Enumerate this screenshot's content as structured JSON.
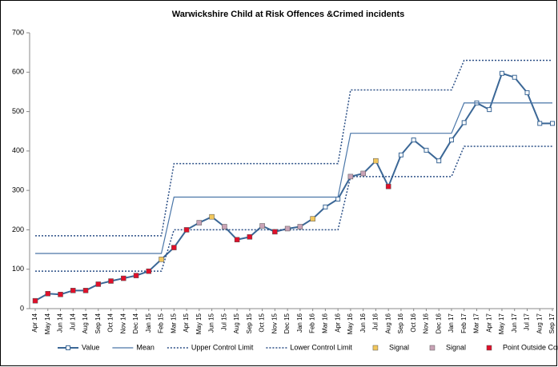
{
  "chart_data": {
    "type": "line",
    "title": "Warwickshire Child at Risk Offences &Crimed incidents",
    "categories": [
      "Apr 14",
      "May 14",
      "Jun 14",
      "Jul 14",
      "Aug 14",
      "Sep 14",
      "Oct 14",
      "Nov 14",
      "Dec 14",
      "Jan 15",
      "Feb 15",
      "Mar 15",
      "Apr 15",
      "May 15",
      "Jun 15",
      "Jul 15",
      "Aug 15",
      "Sep 15",
      "Oct 15",
      "Nov 15",
      "Dec 15",
      "Jan 16",
      "Feb 16",
      "Mar 16",
      "Apr 16",
      "May 16",
      "Jun 16",
      "Jul 16",
      "Aug 16",
      "Sep 16",
      "Oct 16",
      "Nov 16",
      "Dec 16",
      "Jan 17",
      "Feb 17",
      "Mar 17",
      "Apr 17",
      "May 17",
      "Jun 17",
      "Jul 17",
      "Aug 17",
      "Sep 17"
    ],
    "ylim": [
      0,
      700
    ],
    "yticks": [
      0,
      100,
      200,
      300,
      400,
      500,
      600,
      700
    ],
    "series": [
      {
        "name": "Value",
        "color": "#3b6796",
        "line": "solid",
        "marker": "open-square",
        "values": [
          20,
          38,
          36,
          46,
          46,
          62,
          70,
          77,
          84,
          95,
          125,
          155,
          200,
          218,
          233,
          208,
          175,
          182,
          210,
          195,
          203,
          208,
          228,
          258,
          278,
          335,
          343,
          375,
          310,
          390,
          428,
          402,
          375,
          428,
          472,
          522,
          505,
          597,
          587,
          548,
          470,
          470
        ]
      },
      {
        "name": "Mean",
        "color": "#4a76a8",
        "line": "solid",
        "marker": "none",
        "values": [
          140,
          140,
          140,
          140,
          140,
          140,
          140,
          140,
          140,
          140,
          140,
          283,
          283,
          283,
          283,
          283,
          283,
          283,
          283,
          283,
          283,
          283,
          283,
          283,
          283,
          445,
          445,
          445,
          445,
          445,
          445,
          445,
          445,
          445,
          522,
          522,
          522,
          522,
          522,
          522,
          522,
          522
        ]
      },
      {
        "name": "Upper Control Limit",
        "color": "#2b4f86",
        "line": "dotted",
        "marker": "none",
        "values": [
          185,
          185,
          185,
          185,
          185,
          185,
          185,
          185,
          185,
          185,
          185,
          368,
          368,
          368,
          368,
          368,
          368,
          368,
          368,
          368,
          368,
          368,
          368,
          368,
          368,
          555,
          555,
          555,
          555,
          555,
          555,
          555,
          555,
          555,
          630,
          630,
          630,
          630,
          630,
          630,
          630,
          630
        ]
      },
      {
        "name": "Lower Control Limit",
        "color": "#2b4f86",
        "line": "dotted",
        "marker": "none",
        "values": [
          95,
          95,
          95,
          95,
          95,
          95,
          95,
          95,
          95,
          95,
          95,
          200,
          200,
          200,
          200,
          200,
          200,
          200,
          200,
          200,
          200,
          200,
          200,
          200,
          200,
          335,
          335,
          335,
          335,
          335,
          335,
          335,
          335,
          335,
          412,
          412,
          412,
          412,
          412,
          412,
          412,
          412
        ]
      },
      {
        "name": "Signal",
        "color": "#f2c75c",
        "line": "none",
        "marker": "square",
        "values": [
          null,
          null,
          null,
          null,
          null,
          null,
          null,
          null,
          null,
          null,
          125,
          null,
          null,
          null,
          233,
          null,
          null,
          null,
          null,
          null,
          null,
          null,
          228,
          null,
          null,
          null,
          null,
          375,
          null,
          null,
          null,
          null,
          null,
          null,
          null,
          null,
          null,
          null,
          null,
          null,
          null,
          null
        ]
      },
      {
        "name": "Signal",
        "color": "#c9a3b6",
        "line": "none",
        "marker": "square",
        "values": [
          null,
          null,
          null,
          null,
          null,
          null,
          null,
          null,
          null,
          null,
          null,
          null,
          null,
          218,
          null,
          208,
          null,
          null,
          210,
          null,
          203,
          208,
          null,
          null,
          null,
          335,
          343,
          null,
          null,
          null,
          null,
          null,
          null,
          null,
          null,
          null,
          null,
          null,
          null,
          null,
          null,
          null
        ]
      },
      {
        "name": "Point Outside Control Limit",
        "color": "#e0102a",
        "line": "none",
        "marker": "square",
        "values": [
          20,
          38,
          36,
          46,
          46,
          62,
          70,
          77,
          84,
          95,
          null,
          155,
          200,
          null,
          null,
          null,
          175,
          182,
          null,
          195,
          null,
          null,
          null,
          null,
          null,
          null,
          null,
          null,
          310,
          null,
          null,
          null,
          null,
          null,
          null,
          null,
          null,
          null,
          null,
          null,
          null,
          null
        ]
      }
    ]
  }
}
